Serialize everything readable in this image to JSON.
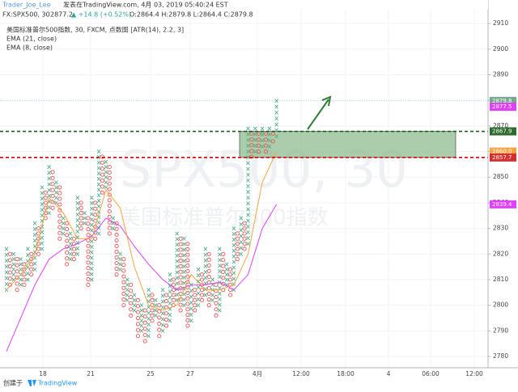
{
  "header": {
    "author": "Trader_Joe_Lee",
    "published": "发表在TradingView.com, 4月 03, 2019 05:40:24 EST"
  },
  "chart_data": {
    "type": "point_and_figure",
    "symbol": "FX:SPX500, 30",
    "last": "2877.2",
    "change": "▲ +14.8 (+0.52%)",
    "ohlc": "O:2864.4 H:2879.8 L:2864.4 C:2879.8",
    "title": "美国标准普尔500指数, 30, FXCM, 点数图 [ATR(14), 2.2, 3]",
    "watermark": [
      "SPX500, 30",
      "美国标准普尔500指数"
    ],
    "box_size": 2.2,
    "x_color": "#4caf8a",
    "o_color": "#ef5350",
    "columns": {
      "kind": [
        "X",
        "O",
        "X",
        "O",
        "X",
        "O",
        "X",
        "O",
        "X",
        "O",
        "X",
        "O",
        "X",
        "O",
        "X",
        "O",
        "X",
        "O",
        "X",
        "O",
        "X",
        "O",
        "X",
        "O",
        "X",
        "O",
        "X",
        "O",
        "X",
        "O",
        "X",
        "O",
        "X",
        "O",
        "X",
        "O",
        "X",
        "O",
        "X",
        "O",
        "X",
        "O",
        "X",
        "O",
        "X",
        "O",
        "X",
        "O",
        "X",
        "O",
        "X",
        "O",
        "X",
        "O",
        "X",
        "O",
        "X",
        "O",
        "X",
        "O",
        "X",
        "O",
        "X",
        "O",
        "X",
        "O",
        "X",
        "O",
        "X",
        "O",
        "X",
        "O",
        "X",
        "O",
        "X",
        "O",
        "X"
      ],
      "low": [
        2806,
        2808,
        2810,
        2806,
        2808,
        2808,
        2810,
        2812,
        2814,
        2820,
        2822,
        2834,
        2836,
        2838,
        2840,
        2826,
        2828,
        2816,
        2818,
        2818,
        2820,
        2830,
        2832,
        2808,
        2810,
        2826,
        2828,
        2844,
        2846,
        2828,
        2830,
        2812,
        2814,
        2800,
        2802,
        2796,
        2798,
        2788,
        2790,
        2786,
        2788,
        2794,
        2796,
        2788,
        2790,
        2792,
        2794,
        2800,
        2802,
        2798,
        2800,
        2792,
        2794,
        2798,
        2800,
        2802,
        2804,
        2800,
        2802,
        2796,
        2798,
        2806,
        2808,
        2804,
        2806,
        2818,
        2820,
        2822,
        2824,
        2858,
        2860,
        2860,
        2862,
        2860,
        2862,
        2864,
        2866
      ],
      "high": [
        2822,
        2820,
        2820,
        2818,
        2818,
        2816,
        2822,
        2820,
        2832,
        2830,
        2846,
        2844,
        2854,
        2852,
        2848,
        2846,
        2834,
        2832,
        2828,
        2826,
        2842,
        2840,
        2836,
        2834,
        2842,
        2840,
        2860,
        2858,
        2856,
        2854,
        2834,
        2832,
        2820,
        2818,
        2810,
        2808,
        2804,
        2802,
        2800,
        2798,
        2806,
        2804,
        2802,
        2800,
        2806,
        2804,
        2812,
        2810,
        2828,
        2826,
        2826,
        2824,
        2808,
        2806,
        2814,
        2812,
        2822,
        2820,
        2810,
        2808,
        2822,
        2820,
        2816,
        2814,
        2830,
        2828,
        2834,
        2832,
        2869,
        2867,
        2869,
        2867,
        2869,
        2867,
        2869,
        2867,
        2879.8
      ]
    },
    "ema_x": [
      0,
      4,
      8,
      12,
      16,
      20,
      24,
      28,
      32,
      36,
      40,
      44,
      48,
      52,
      56,
      60,
      64,
      68,
      72,
      76
    ],
    "series": [
      {
        "name": "EMA (21, close)",
        "color": "#e040fb",
        "values": [
          2782,
          2795,
          2808,
          2818,
          2822,
          2824,
          2827,
          2834,
          2831,
          2823,
          2816,
          2810,
          2806,
          2808,
          2808,
          2809,
          2806,
          2812,
          2830,
          2839.4
        ]
      },
      {
        "name": "EMA (8, close)",
        "color": "#f7a440",
        "values": [
          2806,
          2812,
          2820,
          2842,
          2836,
          2826,
          2826,
          2845,
          2838,
          2815,
          2800,
          2798,
          2800,
          2812,
          2806,
          2806,
          2808,
          2820,
          2848,
          2860
        ]
      }
    ],
    "levels": [
      {
        "value": 2867.9,
        "color": "#1b5e20"
      },
      {
        "value": 2857.7,
        "color": "#d50000"
      },
      {
        "value": 2879.8,
        "color": "#80cbc4"
      }
    ],
    "zone_color": "#8fbc8f",
    "price_labels": [
      {
        "value": 2879.8,
        "color": "#78a88f"
      },
      {
        "value": 2877.5,
        "color": "#e040fb"
      },
      {
        "value": 2867.9,
        "color": "#2e6b2e"
      },
      {
        "value": 2860,
        "label": "2860.0",
        "color": "#f7a440"
      },
      {
        "value": 2857.7,
        "color": "#d32f2f"
      },
      {
        "value": 2839.4,
        "color": "#e040fb"
      }
    ],
    "ylim": [
      2775.6,
      2915.4
    ],
    "yticks": [
      2780,
      2790,
      2800,
      2810,
      2820,
      2830,
      2840,
      2850,
      2860,
      2870,
      2880,
      2890,
      2900,
      2910
    ],
    "x_labels": [
      "18",
      "21",
      "25",
      "27",
      "4月",
      "12:00",
      "18:00",
      "4",
      "06:00",
      "12:00"
    ],
    "footer": "创建于",
    "brand": "TradingView"
  }
}
